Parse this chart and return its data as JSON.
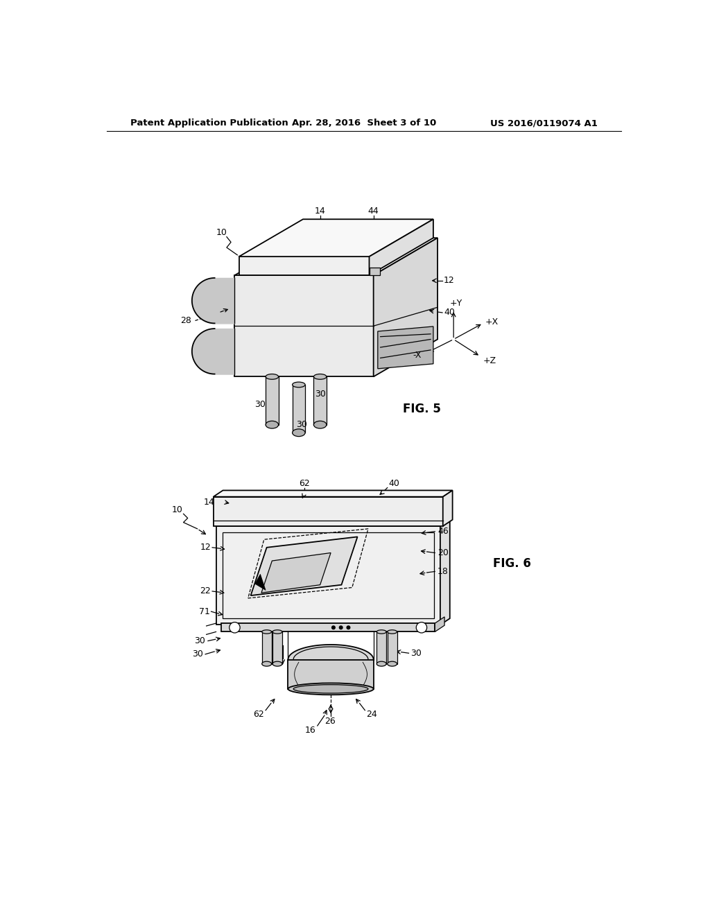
{
  "background_color": "#ffffff",
  "line_color": "#000000",
  "header": {
    "left": "Patent Application Publication",
    "center": "Apr. 28, 2016  Sheet 3 of 10",
    "right": "US 2016/0119074 A1"
  }
}
